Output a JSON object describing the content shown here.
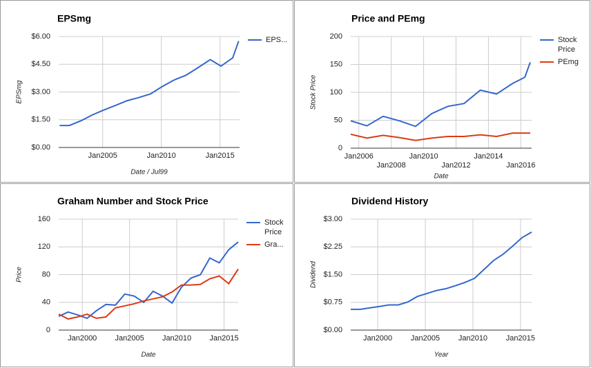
{
  "chart_data": [
    {
      "type": "line",
      "title": "EPSmg",
      "xlabel": "Date / Jul99",
      "ylabel": "EPSmg",
      "x": [
        "2001-05",
        "2002-03",
        "2003-03",
        "2004-02",
        "2005-01",
        "2006-02",
        "2007-02",
        "2008-02",
        "2009-02",
        "2010-02",
        "2011-02",
        "2012-02",
        "2013-02",
        "2014-03",
        "2015-02",
        "2016-02",
        "2016-08"
      ],
      "series": [
        {
          "name": "EPS...",
          "color": "#3366cc",
          "values": [
            1.19,
            1.19,
            1.45,
            1.75,
            2.0,
            2.27,
            2.53,
            2.7,
            2.9,
            3.3,
            3.65,
            3.9,
            4.3,
            4.75,
            4.4,
            4.85,
            5.75
          ]
        }
      ],
      "xlim": [
        "2001-04",
        "2016-09"
      ],
      "xticks": [
        {
          "value": "2005-01",
          "label": "Jan2005"
        },
        {
          "value": "2010-01",
          "label": "Jan2010"
        },
        {
          "value": "2015-01",
          "label": "Jan2015"
        }
      ],
      "ylim": [
        0,
        6
      ],
      "yticks": [
        {
          "value": 0,
          "label": "$0.00"
        },
        {
          "value": 1.5,
          "label": "$1.50"
        },
        {
          "value": 3,
          "label": "$3.00"
        },
        {
          "value": 4.5,
          "label": "$4.50"
        },
        {
          "value": 6,
          "label": "$6.00"
        }
      ],
      "grid": true,
      "legend": "right"
    },
    {
      "type": "line",
      "title": "Price and PEmg",
      "xlabel": "Date",
      "ylabel": "Stock Price",
      "x": [
        "2005-07",
        "2006-07",
        "2007-07",
        "2008-07",
        "2009-07",
        "2010-07",
        "2011-07",
        "2012-07",
        "2013-07",
        "2014-07",
        "2015-07",
        "2016-04",
        "2016-08"
      ],
      "series": [
        {
          "name": "Stock Price",
          "color": "#3366cc",
          "values": [
            49,
            40,
            57,
            49,
            39,
            62,
            75,
            80,
            104,
            97,
            116,
            127,
            154
          ]
        },
        {
          "name": "PEmg",
          "color": "#dc3912",
          "values": [
            25,
            18,
            23,
            19,
            14,
            18,
            21,
            21,
            24,
            21,
            27,
            27,
            27
          ]
        }
      ],
      "xlim": [
        "2005-07",
        "2016-09"
      ],
      "xticks": [
        {
          "value": "2006-01",
          "label": "Jan2006"
        },
        {
          "value": "2008-01",
          "label": "Jan2008"
        },
        {
          "value": "2010-01",
          "label": "Jan2010"
        },
        {
          "value": "2012-01",
          "label": "Jan2012"
        },
        {
          "value": "2014-01",
          "label": "Jan2014"
        },
        {
          "value": "2016-01",
          "label": "Jan2016"
        }
      ],
      "ylim": [
        0,
        200
      ],
      "yticks": [
        0,
        50,
        100,
        150,
        200
      ],
      "grid": true,
      "legend": "right"
    },
    {
      "type": "line",
      "title": "Graham Number and Stock Price",
      "xlabel": "Date",
      "ylabel": "Price",
      "x": [
        "1997-07",
        "1998-07",
        "1999-07",
        "2000-07",
        "2001-07",
        "2002-07",
        "2003-07",
        "2004-07",
        "2005-07",
        "2006-07",
        "2007-07",
        "2008-07",
        "2009-07",
        "2010-07",
        "2011-07",
        "2012-07",
        "2013-07",
        "2014-07",
        "2015-07",
        "2016-07"
      ],
      "series": [
        {
          "name": "Stock Price",
          "color": "#3366cc",
          "values": [
            20,
            26,
            22,
            17,
            28,
            37,
            36,
            52,
            49,
            40,
            56,
            49,
            39,
            62,
            75,
            80,
            104,
            97,
            116,
            127
          ]
        },
        {
          "name": "Gra...",
          "color": "#dc3912",
          "values": [
            23,
            16,
            19,
            23,
            17,
            19,
            32,
            35,
            38,
            42,
            45,
            48,
            55,
            65,
            65,
            66,
            74,
            78,
            67,
            88
          ]
        }
      ],
      "xlim": [
        "1997-07",
        "2016-07"
      ],
      "xticks": [
        {
          "value": "2000-01",
          "label": "Jan2000"
        },
        {
          "value": "2005-01",
          "label": "Jan2005"
        },
        {
          "value": "2010-01",
          "label": "Jan2010"
        },
        {
          "value": "2015-01",
          "label": "Jan2015"
        }
      ],
      "ylim": [
        0,
        160
      ],
      "yticks": [
        0,
        40,
        80,
        120,
        160
      ],
      "grid": true,
      "legend": "right"
    },
    {
      "type": "line",
      "title": "Dividend History",
      "xlabel": "Year",
      "ylabel": "Dividend",
      "x": [
        "1997-03",
        "1998-03",
        "1999-03",
        "2000-03",
        "2001-03",
        "2002-03",
        "2003-03",
        "2004-03",
        "2005-03",
        "2006-03",
        "2007-03",
        "2008-03",
        "2009-03",
        "2010-03",
        "2011-03",
        "2012-03",
        "2013-03",
        "2014-03",
        "2015-03",
        "2016-03"
      ],
      "series": [
        {
          "color": "#3366cc",
          "values": [
            0.56,
            0.56,
            0.6,
            0.64,
            0.68,
            0.68,
            0.76,
            0.91,
            0.99,
            1.07,
            1.12,
            1.2,
            1.29,
            1.4,
            1.64,
            1.88,
            2.05,
            2.27,
            2.5,
            2.65
          ]
        }
      ],
      "xlim": [
        "1997-03",
        "2016-03"
      ],
      "xticks": [
        {
          "value": "2000-01",
          "label": "Jan2000"
        },
        {
          "value": "2005-01",
          "label": "Jan2005"
        },
        {
          "value": "2010-01",
          "label": "Jan2010"
        },
        {
          "value": "2015-01",
          "label": "Jan2015"
        }
      ],
      "ylim": [
        0,
        3
      ],
      "yticks": [
        {
          "value": 0,
          "label": "$0.00"
        },
        {
          "value": 0.75,
          "label": "$0.75"
        },
        {
          "value": 1.5,
          "label": "$1.50"
        },
        {
          "value": 2.25,
          "label": "$2.25"
        },
        {
          "value": 3,
          "label": "$3.00"
        }
      ],
      "grid": true
    }
  ]
}
